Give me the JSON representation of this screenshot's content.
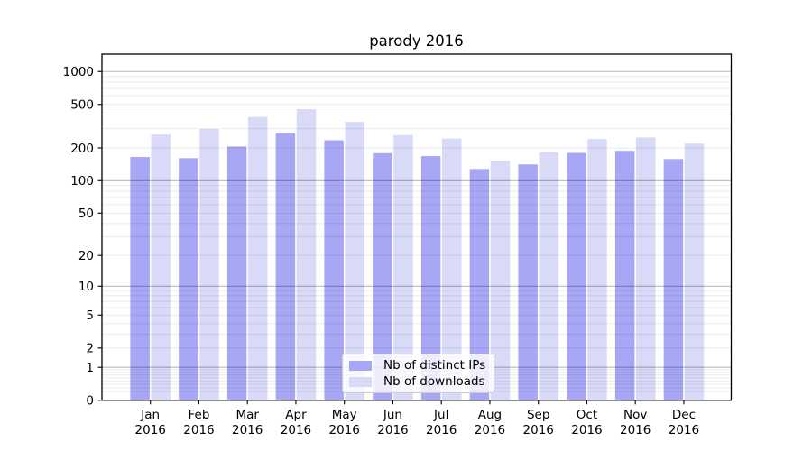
{
  "chart_data": {
    "type": "bar",
    "title": "parody 2016",
    "categories": [
      {
        "month": "Jan",
        "year": "2016"
      },
      {
        "month": "Feb",
        "year": "2016"
      },
      {
        "month": "Mar",
        "year": "2016"
      },
      {
        "month": "Apr",
        "year": "2016"
      },
      {
        "month": "May",
        "year": "2016"
      },
      {
        "month": "Jun",
        "year": "2016"
      },
      {
        "month": "Jul",
        "year": "2016"
      },
      {
        "month": "Aug",
        "year": "2016"
      },
      {
        "month": "Sep",
        "year": "2016"
      },
      {
        "month": "Oct",
        "year": "2016"
      },
      {
        "month": "Nov",
        "year": "2016"
      },
      {
        "month": "Dec",
        "year": "2016"
      }
    ],
    "series": [
      {
        "name": "Nb of distinct IPs",
        "color": "#a7a7f5",
        "values": [
          165,
          161,
          206,
          276,
          235,
          179,
          168,
          128,
          141,
          180,
          188,
          158
        ]
      },
      {
        "name": "Nb of downloads",
        "color": "#d9d9f8",
        "values": [
          265,
          298,
          384,
          452,
          346,
          262,
          243,
          152,
          183,
          241,
          249,
          219
        ]
      }
    ],
    "yticks": [
      0,
      1,
      2,
      5,
      10,
      20,
      50,
      100,
      200,
      500,
      1000
    ],
    "yscale": "log10(value+1)",
    "ylim": [
      0,
      1430
    ],
    "xlabel": "",
    "ylabel": "",
    "grid": "horizontal: dark lines at 1,10,100,1000; faint lines at other log subdivisions",
    "legend_position": "lower center inside plot",
    "colors": {
      "major_grid": "rgba(0,0,0,0.28)",
      "minor_grid": "rgba(0,0,0,0.08)",
      "spine": "#000000",
      "legend_border": "#cccccc"
    }
  }
}
